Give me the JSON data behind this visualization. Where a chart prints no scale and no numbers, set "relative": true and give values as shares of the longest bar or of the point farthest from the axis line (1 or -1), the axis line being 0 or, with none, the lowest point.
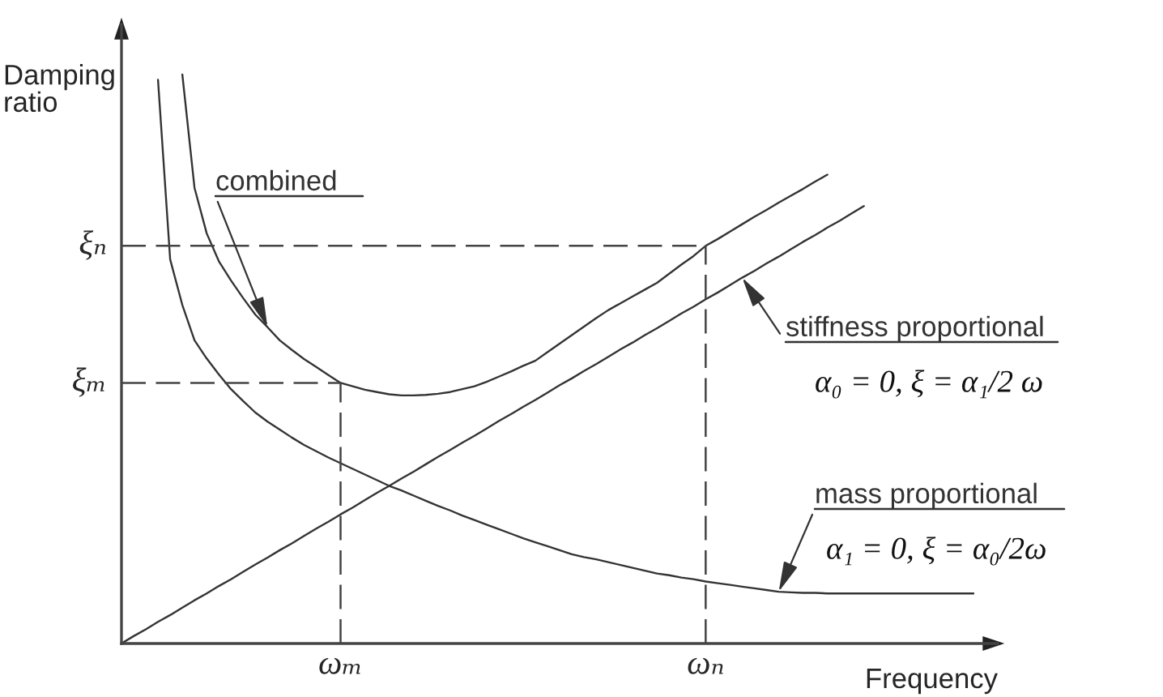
{
  "chart_data": {
    "type": "line",
    "relative": true,
    "xlabel": "Frequency",
    "ylabel": "Damping ratio",
    "categories": [
      null,
      null,
      null,
      null,
      null,
      null,
      null,
      null,
      null,
      null,
      null,
      null,
      null,
      null,
      null,
      null,
      null,
      null,
      "ωₘ",
      null,
      null,
      null,
      null,
      null,
      null,
      null,
      null,
      null,
      null,
      null,
      null,
      null,
      null,
      null,
      null,
      null,
      null,
      null,
      null,
      null,
      null,
      null,
      null,
      null,
      null,
      null,
      null,
      null,
      "ωₙ",
      null,
      null,
      null,
      null,
      null,
      null,
      null,
      null,
      null,
      null,
      null,
      null,
      null,
      null,
      null,
      null,
      null,
      null,
      null,
      null,
      null,
      null,
      null,
      null
    ],
    "series": [
      {
        "name": "combined",
        "color": "#333333",
        "values": [
          null,
          null,
          null,
          null,
          null,
          1.0,
          0.801,
          0.721,
          0.672,
          0.638,
          0.607,
          0.578,
          0.556,
          0.533,
          0.516,
          0.5,
          0.486,
          0.472,
          0.458,
          0.452,
          0.446,
          0.442,
          0.438,
          0.436,
          0.436,
          0.437,
          0.439,
          0.442,
          0.447,
          0.452,
          0.46,
          0.469,
          0.478,
          0.488,
          0.497,
          0.512,
          0.527,
          0.542,
          0.557,
          0.572,
          0.586,
          0.598,
          0.61,
          0.622,
          0.634,
          0.65,
          0.666,
          0.681,
          0.699,
          0.711,
          0.724,
          0.737,
          0.75,
          0.762,
          0.775,
          0.787,
          0.799,
          0.812,
          0.824,
          null,
          null,
          null,
          null,
          null,
          null,
          null,
          null,
          null,
          null,
          null,
          null,
          null,
          null
        ]
      },
      {
        "name": "stiffness proportional",
        "color": "#333333",
        "values": [
          0,
          0.013,
          0.025,
          0.038,
          0.05,
          0.063,
          0.076,
          0.088,
          0.101,
          0.113,
          0.126,
          0.139,
          0.151,
          0.164,
          0.176,
          0.189,
          0.202,
          0.214,
          0.227,
          0.239,
          0.252,
          0.265,
          0.277,
          0.29,
          0.302,
          0.315,
          0.328,
          0.34,
          0.353,
          0.365,
          0.378,
          0.391,
          0.403,
          0.416,
          0.428,
          0.441,
          0.454,
          0.466,
          0.479,
          0.491,
          0.504,
          0.517,
          0.529,
          0.542,
          0.554,
          0.567,
          0.58,
          0.592,
          0.605,
          0.617,
          0.63,
          0.643,
          0.655,
          0.668,
          0.68,
          0.693,
          0.706,
          0.718,
          0.731,
          0.743,
          0.756,
          0.769,
          null,
          null,
          null,
          null,
          null,
          null,
          null,
          null,
          null,
          null,
          null
        ]
      },
      {
        "name": "mass proportional",
        "color": "#333333",
        "values": [
          null,
          null,
          null,
          0.991,
          0.675,
          0.595,
          0.533,
          0.501,
          0.473,
          0.447,
          0.426,
          0.406,
          0.39,
          0.376,
          0.362,
          0.349,
          0.338,
          0.327,
          0.317,
          0.307,
          0.297,
          0.287,
          0.277,
          0.269,
          0.26,
          0.251,
          0.242,
          0.234,
          0.225,
          0.217,
          0.209,
          0.201,
          0.193,
          0.185,
          0.178,
          0.171,
          0.164,
          0.157,
          0.152,
          0.148,
          0.143,
          0.138,
          0.133,
          0.128,
          0.123,
          0.12,
          0.116,
          0.113,
          0.109,
          0.106,
          0.103,
          0.1,
          0.097,
          0.094,
          0.091,
          0.09,
          0.089,
          0.089,
          0.088,
          0.088,
          0.088,
          0.088,
          0.088,
          0.088,
          0.088,
          0.088,
          0.088,
          0.088,
          0.088,
          0.088,
          0.088,
          null,
          null
        ]
      }
    ],
    "ref_lines": [
      {
        "axis": "x",
        "value": "ωₘ",
        "color": "#444444",
        "line_style": "dashed"
      },
      {
        "axis": "y",
        "value": 0.458,
        "label": "ξₘ",
        "color": "#444444",
        "line_style": "dashed"
      },
      {
        "axis": "x",
        "value": "ωₙ",
        "color": "#444444",
        "line_style": "dashed"
      },
      {
        "axis": "y",
        "value": 0.699,
        "label": "ξₙ",
        "color": "#444444",
        "line_style": "dashed"
      }
    ],
    "annotations": [
      "α₀ = 0, ξ = α₁/2 ω",
      "α₁ = 0, ξ = α₀/2ω"
    ]
  }
}
